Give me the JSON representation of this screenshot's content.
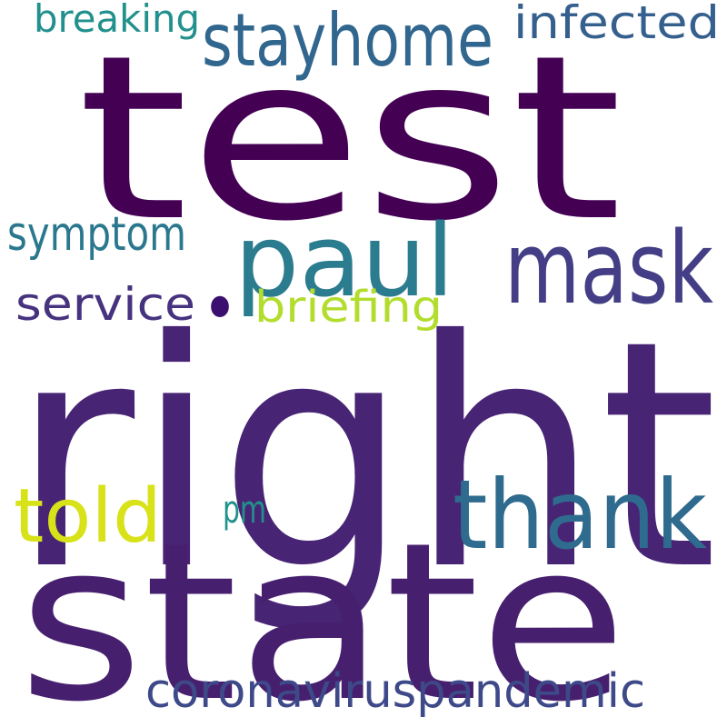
{
  "words": [
    {
      "text": "test",
      "color": "#440154"
    },
    {
      "text": "right",
      "color": "#482475"
    },
    {
      "text": "state",
      "color": "#471f6f"
    },
    {
      "text": "stayhome",
      "color": "#31668e"
    },
    {
      "text": "paul",
      "color": "#2b7c8e"
    },
    {
      "text": "mask",
      "color": "#433e85"
    },
    {
      "text": "thank",
      "color": "#2f6b8e"
    },
    {
      "text": "told",
      "color": "#d8e219"
    },
    {
      "text": "infected",
      "color": "#355f8d"
    },
    {
      "text": "breaking",
      "color": "#22908d"
    },
    {
      "text": "symptom",
      "color": "#2b788e"
    },
    {
      "text": "service",
      "color": "#46327e"
    },
    {
      "text": "briefing",
      "color": "#b2dd2d"
    },
    {
      "text": "pm",
      "color": "#21918c"
    },
    {
      "text": "coronaviruspandemic",
      "color": "#3e4989"
    },
    {
      "text": "•",
      "color": "#3b0f70"
    }
  ]
}
